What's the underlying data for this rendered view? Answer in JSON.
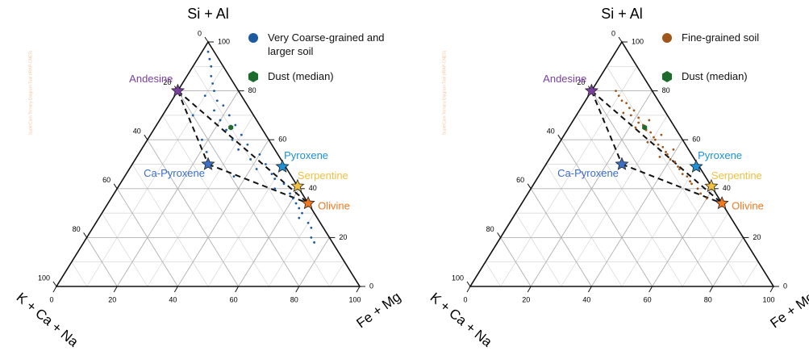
{
  "chart_data": [
    {
      "type": "ternary",
      "top_label": "Si + Al",
      "right_label": "Fe + Mg",
      "left_label": "K + Ca + Na",
      "watermark": "SuperCam Ternary Diagram Tool (IRAP-CNES)",
      "ticks": [
        0,
        20,
        40,
        60,
        80,
        100
      ],
      "minor_ticks": [
        10,
        30,
        50,
        70,
        90
      ],
      "grid": true,
      "series": [
        {
          "name": "Very Coarse-grained and larger soil",
          "color": "#1d5aa0",
          "marker": "circle",
          "si_al": [
            96,
            93,
            90,
            86,
            83,
            80,
            78,
            76,
            74,
            72,
            70,
            68,
            66,
            64,
            62,
            60,
            58,
            56,
            54,
            52,
            50,
            48,
            46,
            44,
            42,
            40,
            38,
            36,
            34,
            32,
            30,
            28,
            26,
            24,
            20,
            18,
            60,
            55,
            45,
            70
          ],
          "fe_mg": [
            2,
            4,
            6,
            8,
            10,
            12,
            10,
            15,
            18,
            16,
            22,
            20,
            26,
            24,
            30,
            28,
            34,
            32,
            40,
            38,
            44,
            42,
            48,
            50,
            54,
            52,
            58,
            60,
            62,
            64,
            66,
            66,
            70,
            72,
            74,
            76,
            18,
            22,
            36,
            10
          ],
          "k_ca_na": [
            2,
            3,
            4,
            6,
            7,
            8,
            12,
            9,
            8,
            12,
            8,
            12,
            8,
            12,
            8,
            12,
            8,
            12,
            6,
            10,
            6,
            10,
            6,
            6,
            4,
            8,
            4,
            4,
            4,
            4,
            4,
            6,
            4,
            4,
            6,
            6,
            22,
            23,
            19,
            20
          ]
        },
        {
          "name": "Dust (median)",
          "color": "#1e6b2e",
          "marker": "hexagon",
          "si_al": [
            65
          ],
          "fe_mg": [
            25
          ],
          "k_ca_na": [
            10
          ]
        }
      ],
      "minerals": [
        {
          "name": "Andesine",
          "color": "#7b3fa0",
          "si_al": 80,
          "fe_mg": 0,
          "k_ca_na": 20
        },
        {
          "name": "Pyroxene",
          "color": "#1e90d6",
          "si_al": 49,
          "fe_mg": 50,
          "k_ca_na": 1
        },
        {
          "name": "Serpentine",
          "color": "#f0c040",
          "si_al": 41,
          "fe_mg": 59,
          "k_ca_na": 0
        },
        {
          "name": "Olivine",
          "color": "#f07820",
          "si_al": 34,
          "fe_mg": 66,
          "k_ca_na": 0
        },
        {
          "name": "Ca-Pyroxene",
          "color": "#3a6fc4",
          "si_al": 50,
          "fe_mg": 25,
          "k_ca_na": 25
        }
      ]
    },
    {
      "type": "ternary",
      "top_label": "Si + Al",
      "right_label": "Fe + Mg",
      "left_label": "K + Ca + Na",
      "watermark": "SuperCam Ternary Diagram Tool (IRAP-CNES)",
      "ticks": [
        0,
        20,
        40,
        60,
        80,
        100
      ],
      "minor_ticks": [
        10,
        30,
        50,
        70,
        90
      ],
      "grid": true,
      "series": [
        {
          "name": "Fine-grained soil",
          "color": "#a0561a",
          "marker": "circle",
          "si_al": [
            80,
            78,
            76,
            75,
            73,
            72,
            70,
            69,
            67,
            66,
            64,
            63,
            61,
            60,
            58,
            57,
            55,
            54,
            52,
            51,
            49,
            48,
            46,
            45,
            43,
            42,
            40,
            38,
            36,
            71,
            65,
            59,
            53,
            62,
            56,
            68
          ],
          "fe_mg": [
            8,
            10,
            12,
            14,
            16,
            18,
            18,
            21,
            22,
            24,
            26,
            28,
            30,
            31,
            33,
            35,
            37,
            38,
            40,
            42,
            44,
            45,
            47,
            49,
            51,
            52,
            55,
            57,
            60,
            15,
            22,
            29,
            36,
            32,
            39,
            25
          ],
          "k_ca_na": [
            12,
            12,
            12,
            11,
            11,
            10,
            12,
            10,
            11,
            10,
            10,
            9,
            9,
            9,
            9,
            8,
            8,
            8,
            8,
            7,
            7,
            7,
            7,
            6,
            6,
            6,
            5,
            5,
            4,
            14,
            13,
            12,
            11,
            6,
            5,
            7
          ]
        },
        {
          "name": "Dust (median)",
          "color": "#1e6b2e",
          "marker": "hexagon",
          "si_al": [
            65
          ],
          "fe_mg": [
            25
          ],
          "k_ca_na": [
            10
          ]
        }
      ],
      "minerals": [
        {
          "name": "Andesine",
          "color": "#7b3fa0",
          "si_al": 80,
          "fe_mg": 0,
          "k_ca_na": 20
        },
        {
          "name": "Pyroxene",
          "color": "#1e90d6",
          "si_al": 49,
          "fe_mg": 50,
          "k_ca_na": 1
        },
        {
          "name": "Serpentine",
          "color": "#f0c040",
          "si_al": 41,
          "fe_mg": 59,
          "k_ca_na": 0
        },
        {
          "name": "Olivine",
          "color": "#f07820",
          "si_al": 34,
          "fe_mg": 66,
          "k_ca_na": 0
        },
        {
          "name": "Ca-Pyroxene",
          "color": "#3a6fc4",
          "si_al": 50,
          "fe_mg": 25,
          "k_ca_na": 25
        }
      ]
    }
  ]
}
